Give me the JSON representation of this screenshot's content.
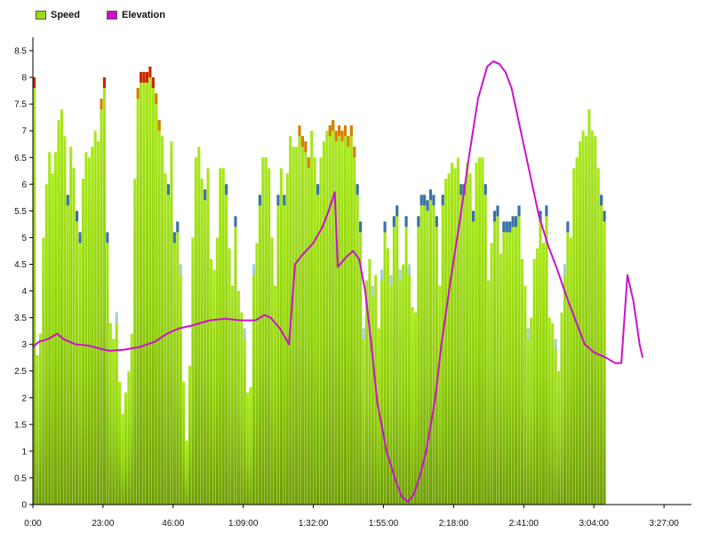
{
  "legend": {
    "speed_label": "Speed",
    "elevation_label": "Elevation"
  },
  "colors": {
    "speed": "#99dd11",
    "speed_dark": "#6e9e00",
    "elevation": "#cc11cc",
    "cap_red": "#cc2200",
    "cap_orange": "#dd7a00",
    "cap_blue": "#3a6fb0",
    "cap_pale": "#a9cfd6",
    "axis": "#000000"
  },
  "chart_data": {
    "type": "bar",
    "overlay": "line",
    "ylim": [
      0,
      8.75
    ],
    "y_ticks": [
      "0",
      "0.5",
      "1",
      "1.5",
      "2",
      "2.5",
      "3",
      "3.5",
      "4",
      "4.5",
      "5",
      "5.5",
      "6",
      "6.5",
      "7",
      "7.5",
      "8",
      "8.5"
    ],
    "x_tick_labels": [
      "0:00",
      "23:00",
      "46:00",
      "1:09:00",
      "1:32:00",
      "1:55:00",
      "2:18:00",
      "2:41:00",
      "3:04:00",
      "3:27:00"
    ],
    "x_range_minutes": [
      0,
      216
    ],
    "x_tick_interval_minutes": 23,
    "series": [
      {
        "name": "Speed",
        "kind": "bar",
        "sample_interval_minutes": 1,
        "values": [
          8.0,
          2.8,
          3.2,
          5.0,
          6.0,
          6.6,
          6.2,
          6.6,
          7.2,
          7.4,
          6.9,
          5.8,
          6.7,
          6.3,
          5.5,
          5.1,
          6.1,
          6.6,
          6.5,
          6.7,
          7.0,
          6.8,
          7.6,
          8.0,
          5.1,
          3.4,
          3.1,
          3.6,
          2.3,
          1.7,
          2.1,
          2.5,
          3.2,
          6.1,
          7.8,
          8.1,
          8.1,
          8.1,
          8.2,
          8.0,
          7.7,
          7.2,
          6.9,
          6.2,
          6.0,
          6.8,
          5.1,
          5.3,
          4.5,
          2.3,
          1.2,
          2.6,
          5.0,
          6.5,
          6.7,
          6.1,
          5.9,
          6.3,
          4.6,
          4.4,
          5.0,
          6.3,
          6.3,
          6.0,
          4.8,
          4.1,
          5.4,
          4.0,
          3.6,
          3.3,
          2.1,
          2.2,
          4.5,
          4.9,
          5.8,
          6.5,
          6.5,
          6.3,
          5.0,
          4.1,
          5.8,
          6.3,
          5.8,
          6.2,
          6.9,
          6.7,
          6.7,
          7.1,
          6.9,
          6.8,
          6.5,
          7.0,
          6.5,
          6.0,
          6.5,
          6.8,
          7.0,
          7.1,
          7.2,
          7.0,
          7.1,
          7.0,
          7.1,
          6.9,
          7.1,
          6.7,
          6.0,
          5.3,
          3.3,
          4.2,
          4.6,
          4.1,
          4.3,
          3.3,
          4.4,
          5.3,
          4.8,
          4.3,
          5.4,
          5.6,
          4.4,
          4.5,
          5.4,
          4.5,
          3.7,
          3.6,
          5.4,
          5.8,
          5.8,
          5.7,
          5.9,
          5.8,
          5.4,
          4.1,
          5.8,
          6.1,
          6.2,
          6.4,
          6.3,
          6.5,
          6.0,
          6.0,
          6.4,
          6.2,
          5.5,
          6.4,
          6.5,
          6.5,
          6.0,
          4.2,
          4.9,
          5.5,
          5.6,
          4.7,
          5.3,
          5.3,
          5.3,
          5.4,
          5.4,
          5.6,
          4.6,
          4.1,
          3.3,
          3.5,
          4.6,
          4.8,
          5.5,
          4.9,
          5.6,
          3.5,
          3.4,
          3.1,
          2.5,
          3.6,
          4.5,
          5.3,
          5.0,
          6.3,
          6.5,
          6.8,
          7.0,
          6.9,
          7.4,
          7.0,
          6.9,
          6.3,
          5.8,
          5.5
        ],
        "colored_tips": [
          {
            "index": 0,
            "color": "cap_red"
          },
          {
            "index": 22,
            "color": "cap_orange"
          },
          {
            "index": 23,
            "color": "cap_red"
          },
          {
            "index": 34,
            "color": "cap_orange"
          },
          {
            "index": 35,
            "color": "cap_red"
          },
          {
            "index": 36,
            "color": "cap_red"
          },
          {
            "index": 37,
            "color": "cap_red"
          },
          {
            "index": 38,
            "color": "cap_red"
          },
          {
            "index": 39,
            "color": "cap_red"
          },
          {
            "index": 40,
            "color": "cap_orange"
          },
          {
            "index": 41,
            "color": "cap_orange"
          },
          {
            "index": 87,
            "color": "cap_orange"
          },
          {
            "index": 88,
            "color": "cap_orange"
          },
          {
            "index": 89,
            "color": "cap_orange"
          },
          {
            "index": 90,
            "color": "cap_orange"
          },
          {
            "index": 97,
            "color": "cap_orange"
          },
          {
            "index": 98,
            "color": "cap_orange"
          },
          {
            "index": 99,
            "color": "cap_orange"
          },
          {
            "index": 100,
            "color": "cap_orange"
          },
          {
            "index": 101,
            "color": "cap_orange"
          },
          {
            "index": 102,
            "color": "cap_orange"
          },
          {
            "index": 103,
            "color": "cap_orange"
          },
          {
            "index": 104,
            "color": "cap_orange"
          },
          {
            "index": 105,
            "color": "cap_orange"
          },
          {
            "index": 206,
            "color": "cap_orange"
          },
          {
            "index": 207,
            "color": "cap_orange"
          },
          {
            "index": 208,
            "color": "cap_orange"
          },
          {
            "index": 209,
            "color": "cap_orange"
          }
        ]
      },
      {
        "name": "Elevation",
        "kind": "line",
        "points": [
          [
            0,
            2.95
          ],
          [
            2,
            3.05
          ],
          [
            5,
            3.1
          ],
          [
            8,
            3.2
          ],
          [
            10,
            3.1
          ],
          [
            14,
            3.0
          ],
          [
            18,
            2.98
          ],
          [
            22,
            2.92
          ],
          [
            25,
            2.88
          ],
          [
            30,
            2.9
          ],
          [
            35,
            2.95
          ],
          [
            40,
            3.05
          ],
          [
            44,
            3.2
          ],
          [
            48,
            3.3
          ],
          [
            52,
            3.35
          ],
          [
            58,
            3.45
          ],
          [
            63,
            3.48
          ],
          [
            68,
            3.45
          ],
          [
            73,
            3.45
          ],
          [
            76,
            3.55
          ],
          [
            78,
            3.5
          ],
          [
            81,
            3.3
          ],
          [
            84,
            3.0
          ],
          [
            86,
            4.5
          ],
          [
            88,
            4.65
          ],
          [
            92,
            4.9
          ],
          [
            95,
            5.2
          ],
          [
            97,
            5.5
          ],
          [
            99,
            5.85
          ],
          [
            100,
            4.45
          ],
          [
            103,
            4.65
          ],
          [
            105,
            4.75
          ],
          [
            107,
            4.6
          ],
          [
            109,
            4.0
          ],
          [
            111,
            3.0
          ],
          [
            113,
            1.9
          ],
          [
            116,
            1.0
          ],
          [
            119,
            0.45
          ],
          [
            121,
            0.15
          ],
          [
            123,
            0.05
          ],
          [
            125,
            0.2
          ],
          [
            127,
            0.55
          ],
          [
            129,
            1.0
          ],
          [
            132,
            2.0
          ],
          [
            134,
            3.0
          ],
          [
            137,
            4.2
          ],
          [
            140,
            5.3
          ],
          [
            143,
            6.5
          ],
          [
            146,
            7.6
          ],
          [
            149,
            8.2
          ],
          [
            151,
            8.3
          ],
          [
            153,
            8.25
          ],
          [
            155,
            8.1
          ],
          [
            157,
            7.8
          ],
          [
            160,
            7.0
          ],
          [
            163,
            6.2
          ],
          [
            166,
            5.4
          ],
          [
            169,
            4.85
          ],
          [
            172,
            4.4
          ],
          [
            175,
            3.9
          ],
          [
            178,
            3.45
          ],
          [
            181,
            3.0
          ],
          [
            184,
            2.85
          ],
          [
            188,
            2.75
          ],
          [
            191,
            2.65
          ],
          [
            193,
            2.65
          ],
          [
            195,
            4.3
          ],
          [
            197,
            3.8
          ],
          [
            199,
            3.0
          ],
          [
            200,
            2.75
          ]
        ]
      }
    ]
  }
}
